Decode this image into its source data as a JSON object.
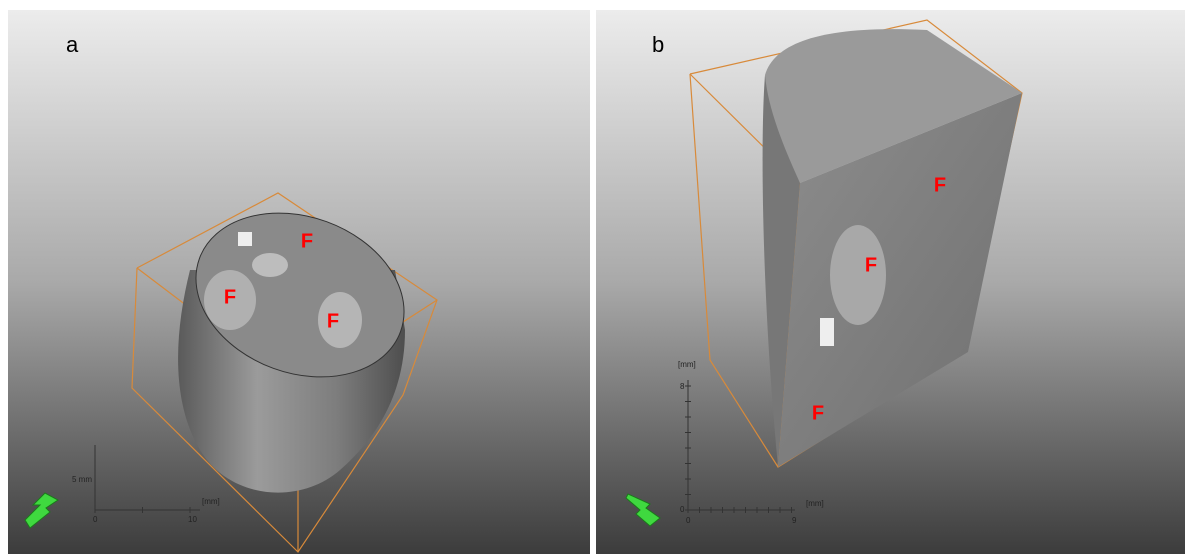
{
  "panels": [
    {
      "label": "a",
      "markers": [
        "F",
        "F",
        "F"
      ],
      "scale": {
        "y_label": "5 mm",
        "x_unit": "[mm]",
        "x_ticks": [
          0,
          10
        ]
      }
    },
    {
      "label": "b",
      "markers": [
        "F",
        "F",
        "F"
      ],
      "scale": {
        "y_unit": "[mm]",
        "y_ticks": [
          8,
          0
        ],
        "x_unit": "[mm]",
        "x_ticks": [
          0,
          9
        ]
      }
    }
  ]
}
